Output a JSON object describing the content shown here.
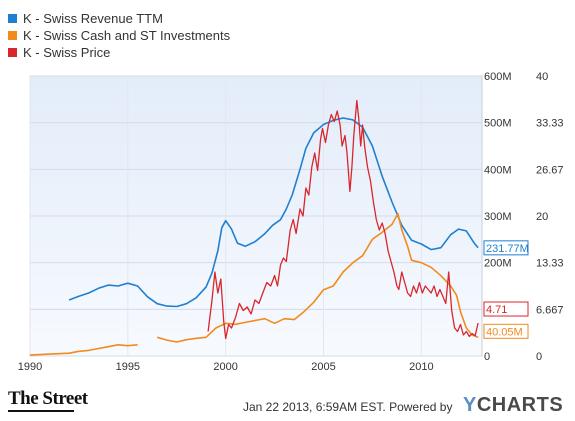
{
  "legend": [
    {
      "label": "K - Swiss Revenue TTM",
      "color": "#1f7fd0"
    },
    {
      "label": "K - Swiss Cash and ST Investments",
      "color": "#f28a1e"
    },
    {
      "label": "K - Swiss Price",
      "color": "#d9262b"
    }
  ],
  "footer": {
    "left_brand": "The Street",
    "timestamp": "Jan 22 2013, 6:59AM EST.  Powered by",
    "right_brand_y": "Y",
    "right_brand_rest": "CHARTS"
  },
  "chart_data": {
    "type": "line",
    "xlim": [
      1990,
      2013.1
    ],
    "x_ticks": [
      "1990",
      "1995",
      "2000",
      "2005",
      "2010"
    ],
    "y_left": {
      "ylim": [
        0,
        600
      ],
      "ticks": [
        "600M",
        "500M",
        "400M",
        "300M",
        "200M",
        "100M",
        "0"
      ]
    },
    "y_right": {
      "ylim": [
        0,
        40
      ],
      "ticks": [
        "40",
        "33.33",
        "26.67",
        "20",
        "13.33",
        "6.667",
        "0"
      ]
    },
    "series": [
      {
        "name": "K - Swiss Revenue TTM",
        "axis": "left",
        "color": "#1f7fd0",
        "last_label": "231.77M",
        "points": [
          [
            1992.0,
            120
          ],
          [
            1992.5,
            128
          ],
          [
            1993.0,
            135
          ],
          [
            1993.5,
            145
          ],
          [
            1994.0,
            152
          ],
          [
            1994.5,
            150
          ],
          [
            1995.0,
            156
          ],
          [
            1995.5,
            150
          ],
          [
            1996.0,
            127
          ],
          [
            1996.5,
            112
          ],
          [
            1997.0,
            107
          ],
          [
            1997.5,
            106
          ],
          [
            1998.0,
            112
          ],
          [
            1998.5,
            125
          ],
          [
            1999.0,
            148
          ],
          [
            1999.3,
            178
          ],
          [
            1999.6,
            225
          ],
          [
            1999.8,
            275
          ],
          [
            2000.0,
            290
          ],
          [
            2000.3,
            272
          ],
          [
            2000.6,
            242
          ],
          [
            2001.0,
            235
          ],
          [
            2001.5,
            245
          ],
          [
            2002.0,
            262
          ],
          [
            2002.4,
            280
          ],
          [
            2002.8,
            292
          ],
          [
            2003.1,
            315
          ],
          [
            2003.4,
            345
          ],
          [
            2003.8,
            400
          ],
          [
            2004.1,
            445
          ],
          [
            2004.5,
            478
          ],
          [
            2005.0,
            496
          ],
          [
            2005.5,
            505
          ],
          [
            2006.0,
            510
          ],
          [
            2006.5,
            506
          ],
          [
            2007.0,
            490
          ],
          [
            2007.5,
            450
          ],
          [
            2008.0,
            385
          ],
          [
            2008.5,
            330
          ],
          [
            2009.0,
            280
          ],
          [
            2009.5,
            248
          ],
          [
            2010.0,
            240
          ],
          [
            2010.5,
            228
          ],
          [
            2011.0,
            232
          ],
          [
            2011.5,
            260
          ],
          [
            2011.9,
            272
          ],
          [
            2012.3,
            268
          ],
          [
            2012.7,
            242
          ],
          [
            2012.9,
            231.77
          ]
        ]
      },
      {
        "name": "K - Swiss Cash and ST Investments",
        "axis": "left",
        "color": "#f28a1e",
        "last_label": "40.05M",
        "points": [
          [
            1990.0,
            2
          ],
          [
            1991.0,
            4
          ],
          [
            1992.0,
            6
          ],
          [
            1992.5,
            10
          ],
          [
            1993.0,
            12
          ],
          [
            1993.5,
            16
          ],
          [
            1994.0,
            20
          ],
          [
            1994.5,
            24
          ],
          [
            1995.0,
            22
          ],
          [
            1995.5,
            24
          ],
          [
            null,
            null
          ],
          [
            1996.5,
            40
          ],
          [
            1997.0,
            34
          ],
          [
            1997.5,
            30
          ],
          [
            1998.0,
            35
          ],
          [
            1998.5,
            38
          ],
          [
            1999.0,
            40
          ],
          [
            1999.5,
            60
          ],
          [
            2000.0,
            70
          ],
          [
            2000.5,
            68
          ],
          [
            2001.0,
            72
          ],
          [
            2001.5,
            76
          ],
          [
            2002.0,
            80
          ],
          [
            2002.5,
            70
          ],
          [
            2003.0,
            80
          ],
          [
            2003.5,
            78
          ],
          [
            2004.0,
            95
          ],
          [
            2004.5,
            115
          ],
          [
            2005.0,
            142
          ],
          [
            2005.5,
            150
          ],
          [
            2006.0,
            180
          ],
          [
            2006.5,
            200
          ],
          [
            2007.0,
            215
          ],
          [
            2007.5,
            250
          ],
          [
            2008.0,
            265
          ],
          [
            2008.5,
            282
          ],
          [
            2008.8,
            305
          ],
          [
            2009.0,
            270
          ],
          [
            2009.3,
            235
          ],
          [
            2009.5,
            205
          ],
          [
            2010.0,
            200
          ],
          [
            2010.5,
            190
          ],
          [
            2011.0,
            172
          ],
          [
            2011.5,
            150
          ],
          [
            2011.8,
            130
          ],
          [
            2012.0,
            95
          ],
          [
            2012.3,
            60
          ],
          [
            2012.6,
            45
          ],
          [
            2012.9,
            40.05
          ]
        ]
      },
      {
        "name": "K - Swiss Price",
        "axis": "right",
        "color": "#d9262b",
        "last_label": "4.71",
        "points": [
          [
            1999.1,
            3.5
          ],
          [
            1999.3,
            8.0
          ],
          [
            1999.45,
            12.0
          ],
          [
            1999.6,
            9.0
          ],
          [
            1999.75,
            11.0
          ],
          [
            1999.9,
            5.0
          ],
          [
            2000.0,
            2.5
          ],
          [
            2000.15,
            4.5
          ],
          [
            2000.3,
            4.0
          ],
          [
            2000.5,
            5.5
          ],
          [
            2000.7,
            7.5
          ],
          [
            2000.9,
            6.5
          ],
          [
            2001.1,
            7.0
          ],
          [
            2001.3,
            6.0
          ],
          [
            2001.5,
            8.0
          ],
          [
            2001.7,
            7.5
          ],
          [
            2001.9,
            9.0
          ],
          [
            2002.1,
            10.5
          ],
          [
            2002.3,
            10.0
          ],
          [
            2002.5,
            11.5
          ],
          [
            2002.65,
            10.0
          ],
          [
            2002.8,
            13.0
          ],
          [
            2002.95,
            14.0
          ],
          [
            2003.1,
            13.5
          ],
          [
            2003.3,
            18.0
          ],
          [
            2003.45,
            19.5
          ],
          [
            2003.6,
            17.5
          ],
          [
            2003.8,
            21.0
          ],
          [
            2003.95,
            20.0
          ],
          [
            2004.1,
            24.0
          ],
          [
            2004.25,
            23.0
          ],
          [
            2004.4,
            27.0
          ],
          [
            2004.55,
            29.0
          ],
          [
            2004.7,
            26.5
          ],
          [
            2004.85,
            31.0
          ],
          [
            2004.95,
            32.5
          ],
          [
            2005.1,
            30.5
          ],
          [
            2005.25,
            33.0
          ],
          [
            2005.4,
            34.5
          ],
          [
            2005.55,
            33.5
          ],
          [
            2005.7,
            35.0
          ],
          [
            2005.85,
            33.0
          ],
          [
            2005.95,
            30.0
          ],
          [
            2006.1,
            31.5
          ],
          [
            2006.2,
            29.0
          ],
          [
            2006.35,
            23.5
          ],
          [
            2006.45,
            27.0
          ],
          [
            2006.55,
            31.5
          ],
          [
            2006.7,
            36.5
          ],
          [
            2006.8,
            34.0
          ],
          [
            2006.9,
            30.0
          ],
          [
            2007.0,
            33.0
          ],
          [
            2007.1,
            30.0
          ],
          [
            2007.25,
            27.0
          ],
          [
            2007.4,
            25.0
          ],
          [
            2007.55,
            22.0
          ],
          [
            2007.7,
            19.5
          ],
          [
            2007.85,
            18.0
          ],
          [
            2008.0,
            19.0
          ],
          [
            2008.15,
            17.5
          ],
          [
            2008.3,
            15.0
          ],
          [
            2008.45,
            13.5
          ],
          [
            2008.6,
            12.0
          ],
          [
            2008.75,
            10.0
          ],
          [
            2008.85,
            9.5
          ],
          [
            2009.0,
            12.0
          ],
          [
            2009.15,
            10.5
          ],
          [
            2009.3,
            9.0
          ],
          [
            2009.45,
            8.5
          ],
          [
            2009.6,
            10.0
          ],
          [
            2009.75,
            9.0
          ],
          [
            2009.9,
            10.5
          ],
          [
            2010.05,
            9.0
          ],
          [
            2010.2,
            10.0
          ],
          [
            2010.35,
            9.5
          ],
          [
            2010.5,
            9.0
          ],
          [
            2010.65,
            10.0
          ],
          [
            2010.8,
            8.5
          ],
          [
            2010.95,
            9.5
          ],
          [
            2011.1,
            8.5
          ],
          [
            2011.25,
            7.5
          ],
          [
            2011.4,
            12.0
          ],
          [
            2011.55,
            6.5
          ],
          [
            2011.7,
            4.0
          ],
          [
            2011.85,
            3.5
          ],
          [
            2012.0,
            4.5
          ],
          [
            2012.15,
            3.0
          ],
          [
            2012.3,
            3.5
          ],
          [
            2012.45,
            2.8
          ],
          [
            2012.6,
            3.2
          ],
          [
            2012.75,
            2.9
          ],
          [
            2012.9,
            4.71
          ]
        ]
      }
    ]
  }
}
